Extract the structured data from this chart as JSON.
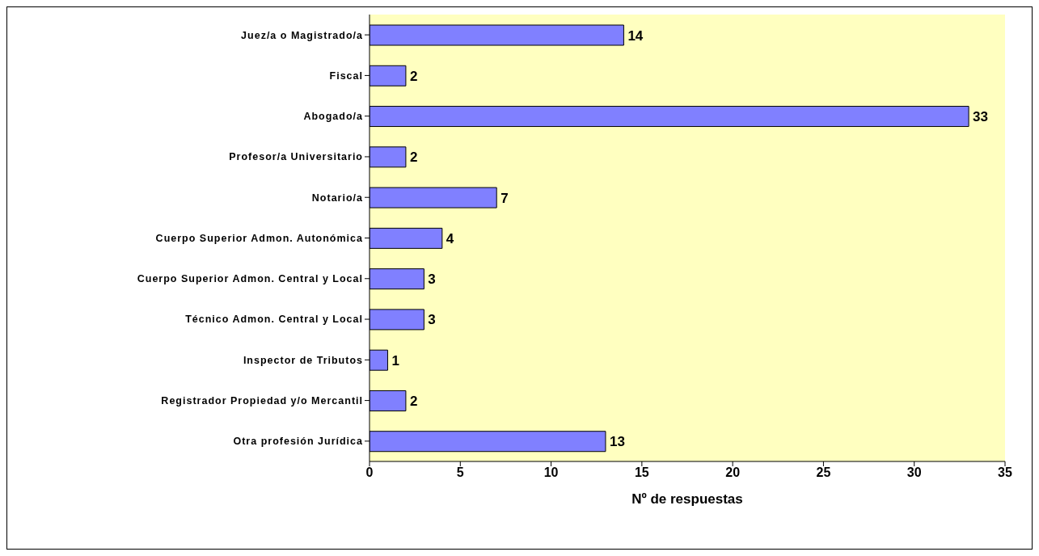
{
  "chart_data": {
    "type": "bar",
    "orientation": "horizontal",
    "xlabel": "Nº de respuestas",
    "categories": [
      "Juez/a o Magistrado/a",
      "Fiscal",
      "Abogado/a",
      "Profesor/a Universitario",
      "Notario/a",
      "Cuerpo Superior Admon. Autonómica",
      "Cuerpo Superior Admon. Central y Local",
      "Técnico Admon. Central y Local",
      "Inspector de Tributos",
      "Registrador Propiedad y/o Mercantil",
      "Otra profesión Jurídica"
    ],
    "values": [
      14,
      2,
      33,
      2,
      7,
      4,
      3,
      3,
      1,
      2,
      13
    ],
    "color": "#8080ff",
    "xlim": [
      0,
      35
    ],
    "xticks": [
      0,
      5,
      10,
      15,
      20,
      25,
      30,
      35
    ],
    "data_labels": true,
    "grid": false
  }
}
